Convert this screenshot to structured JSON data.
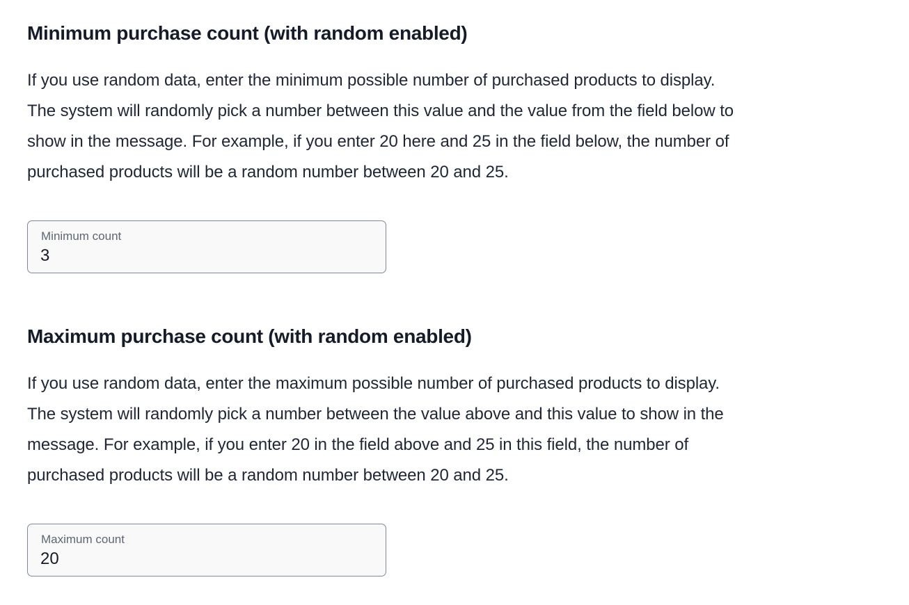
{
  "min_section": {
    "title": "Minimum purchase count (with random enabled)",
    "description_lines": [
      "If you use random data, enter the minimum possible number of purchased products to display.",
      "The system will randomly pick a number between this value and the value from the field below to",
      "show in the message. For example, if you enter 20 here and 25 in the field below, the number of",
      "purchased products will be a random number between 20 and 25."
    ],
    "field_label": "Minimum count",
    "field_value": "3"
  },
  "max_section": {
    "title": "Maximum purchase count (with random enabled)",
    "description_lines": [
      "If you use random data, enter the maximum possible number of purchased products to display.",
      "The system will randomly pick a number between the value above and this value to show in the",
      "message. For example, if you enter 20 in the field above and 25 in this field, the number of",
      "purchased products will be a random number between 20 and 25."
    ],
    "field_label": "Maximum count",
    "field_value": "20"
  }
}
